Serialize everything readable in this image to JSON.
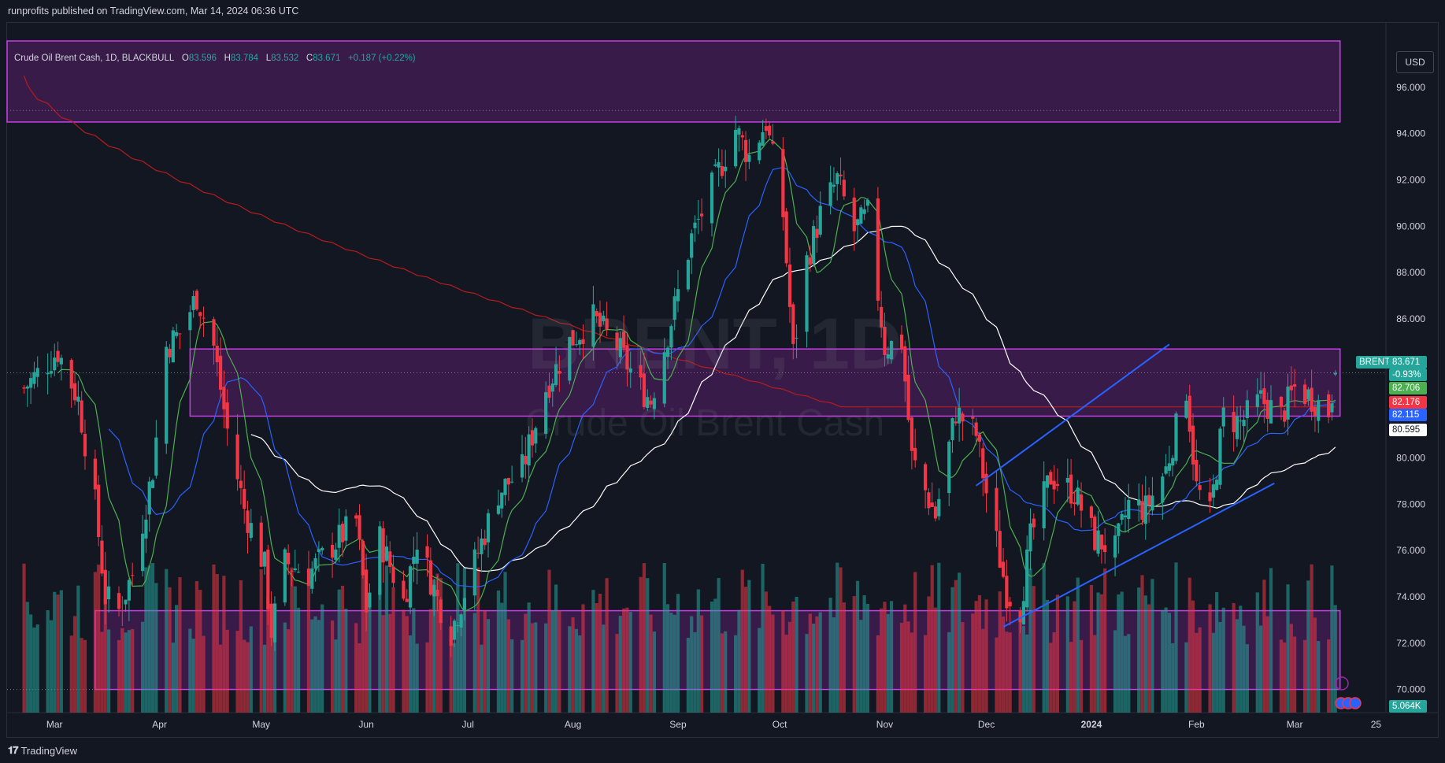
{
  "header": {
    "text": "runprofits published on TradingView.com, Mar 14, 2024 06:36 UTC"
  },
  "footer": {
    "brand": "TradingView",
    "logo_glyph": "𝟏𝟕"
  },
  "legend": {
    "symbol": "Crude Oil Brent Cash, 1D, BLACKBULL",
    "o_label": "O",
    "o_value": "83.596",
    "h_label": "H",
    "h_value": "83.784",
    "l_label": "L",
    "l_value": "83.532",
    "c_label": "C",
    "c_value": "83.671",
    "change": "+0.187 (+0.22%)"
  },
  "currency_button": "USD",
  "watermark": {
    "line1": "BRENT, 1D",
    "line2": "Crude Oil Brent Cash"
  },
  "price_tags": [
    {
      "label": "BRENT",
      "color": "#26a69a",
      "text_color": "#ffffff"
    },
    {
      "value": "83.671",
      "color": "#26a69a",
      "text_color": "#ffffff"
    },
    {
      "value": "-0.93%",
      "color": "#26a69a",
      "text_color": "#ffffff"
    },
    {
      "value": "82.706",
      "color": "#4caf50",
      "text_color": "#ffffff"
    },
    {
      "value": "82.176",
      "color": "#f23645",
      "text_color": "#ffffff"
    },
    {
      "value": "82.115",
      "color": "#2962ff",
      "text_color": "#ffffff"
    },
    {
      "value": "80.595",
      "color": "#ffffff",
      "text_color": "#131722"
    },
    {
      "value": "5.064K",
      "color": "#26a69a",
      "text_color": "#ffffff"
    }
  ],
  "colors": {
    "background": "#131722",
    "up": "#26a69a",
    "down": "#f23645",
    "zone": "#9c27b0",
    "trendline": "#2962ff",
    "ma_fast": "#4caf50",
    "ma_mid": "#2962ff",
    "ma_slow": "#ffffff",
    "ma_long": "#b71c1c"
  },
  "chart_data": {
    "type": "candlestick",
    "symbol": "Crude Oil Brent Cash",
    "timeframe": "1D",
    "y_ticks": [
      "96.000",
      "94.000",
      "92.000",
      "90.000",
      "88.000",
      "86.000",
      "84.000",
      "82.000",
      "80.000",
      "78.000",
      "76.000",
      "74.000",
      "72.000",
      "70.000"
    ],
    "x_ticks": [
      "Mar",
      "Apr",
      "May",
      "Jun",
      "Jul",
      "Aug",
      "Sep",
      "Oct",
      "Nov",
      "Dec",
      "2024",
      "Feb",
      "Mar",
      "25"
    ],
    "ylim": [
      69.0,
      98.0
    ],
    "close_path": [
      [
        "2023-02-20",
        83.0
      ],
      [
        "2023-03-02",
        84.6
      ],
      [
        "2023-03-08",
        82.5
      ],
      [
        "2023-03-13",
        78.0
      ],
      [
        "2023-03-16",
        74.0
      ],
      [
        "2023-03-20",
        73.4
      ],
      [
        "2023-03-24",
        75.0
      ],
      [
        "2023-03-30",
        79.5
      ],
      [
        "2023-04-03",
        84.8
      ],
      [
        "2023-04-07",
        85.4
      ],
      [
        "2023-04-12",
        87.0
      ],
      [
        "2023-04-17",
        84.8
      ],
      [
        "2023-04-21",
        81.2
      ],
      [
        "2023-04-26",
        77.8
      ],
      [
        "2023-05-02",
        75.3
      ],
      [
        "2023-05-04",
        72.5
      ],
      [
        "2023-05-08",
        75.5
      ],
      [
        "2023-05-15",
        75.0
      ],
      [
        "2023-05-22",
        76.2
      ],
      [
        "2023-05-29",
        77.3
      ],
      [
        "2023-06-01",
        73.5
      ],
      [
        "2023-06-05",
        76.5
      ],
      [
        "2023-06-12",
        73.8
      ],
      [
        "2023-06-16",
        76.5
      ],
      [
        "2023-06-22",
        73.9
      ],
      [
        "2023-06-26",
        72.5
      ],
      [
        "2023-07-03",
        75.5
      ],
      [
        "2023-07-10",
        78.5
      ],
      [
        "2023-07-17",
        79.5
      ],
      [
        "2023-07-24",
        83.0
      ],
      [
        "2023-07-31",
        85.0
      ],
      [
        "2023-08-07",
        86.0
      ],
      [
        "2023-08-14",
        84.8
      ],
      [
        "2023-08-21",
        83.0
      ],
      [
        "2023-08-24",
        82.5
      ],
      [
        "2023-08-31",
        86.5
      ],
      [
        "2023-09-05",
        89.5
      ],
      [
        "2023-09-12",
        92.0
      ],
      [
        "2023-09-18",
        94.2
      ],
      [
        "2023-09-22",
        93.0
      ],
      [
        "2023-09-27",
        94.5
      ],
      [
        "2023-10-02",
        90.5
      ],
      [
        "2023-10-05",
        84.5
      ],
      [
        "2023-10-09",
        88.5
      ],
      [
        "2023-10-13",
        90.5
      ],
      [
        "2023-10-18",
        92.0
      ],
      [
        "2023-10-23",
        89.8
      ],
      [
        "2023-10-27",
        90.5
      ],
      [
        "2023-11-01",
        84.8
      ],
      [
        "2023-11-06",
        85.0
      ],
      [
        "2023-11-09",
        80.0
      ],
      [
        "2023-11-16",
        77.5
      ],
      [
        "2023-11-22",
        82.0
      ],
      [
        "2023-11-28",
        81.0
      ],
      [
        "2023-12-01",
        78.5
      ],
      [
        "2023-12-07",
        74.2
      ],
      [
        "2023-12-11",
        73.5
      ],
      [
        "2023-12-14",
        76.5
      ],
      [
        "2023-12-20",
        79.2
      ],
      [
        "2023-12-27",
        78.5
      ],
      [
        "2024-01-02",
        76.5
      ],
      [
        "2024-01-08",
        76.0
      ],
      [
        "2024-01-12",
        78.0
      ],
      [
        "2024-01-17",
        77.8
      ],
      [
        "2024-01-23",
        79.5
      ],
      [
        "2024-01-29",
        83.0
      ],
      [
        "2024-02-01",
        78.7
      ],
      [
        "2024-02-05",
        77.5
      ],
      [
        "2024-02-09",
        81.8
      ],
      [
        "2024-02-14",
        81.5
      ],
      [
        "2024-02-20",
        82.5
      ],
      [
        "2024-02-26",
        81.8
      ],
      [
        "2024-03-01",
        83.0
      ],
      [
        "2024-03-06",
        82.6
      ],
      [
        "2024-03-11",
        82.0
      ],
      [
        "2024-03-13",
        83.67
      ]
    ],
    "zones": [
      {
        "from": "2023-02-15",
        "to": "2024-03-13",
        "low": 94.5,
        "high": 98.0
      },
      {
        "from": "2023-04-10",
        "to": "2024-03-13",
        "low": 81.8,
        "high": 84.7
      },
      {
        "from": "2023-03-13",
        "to": "2024-03-13",
        "low": 70.0,
        "high": 73.4
      }
    ],
    "trendlines": [
      {
        "from": [
          "2023-11-28",
          78.8
        ],
        "to": [
          "2024-01-24",
          84.9
        ]
      },
      {
        "from": [
          "2023-12-06",
          72.7
        ],
        "to": [
          "2024-02-24",
          78.9
        ]
      }
    ],
    "moving_averages": [
      {
        "name": "ma_fast",
        "last": 82.706
      },
      {
        "name": "ma_mid",
        "last": 82.115
      },
      {
        "name": "ma_slow",
        "last": 80.595
      },
      {
        "name": "ma_long",
        "last": 82.176
      }
    ],
    "last_close": 83.671,
    "volume_last": "5.064K"
  }
}
